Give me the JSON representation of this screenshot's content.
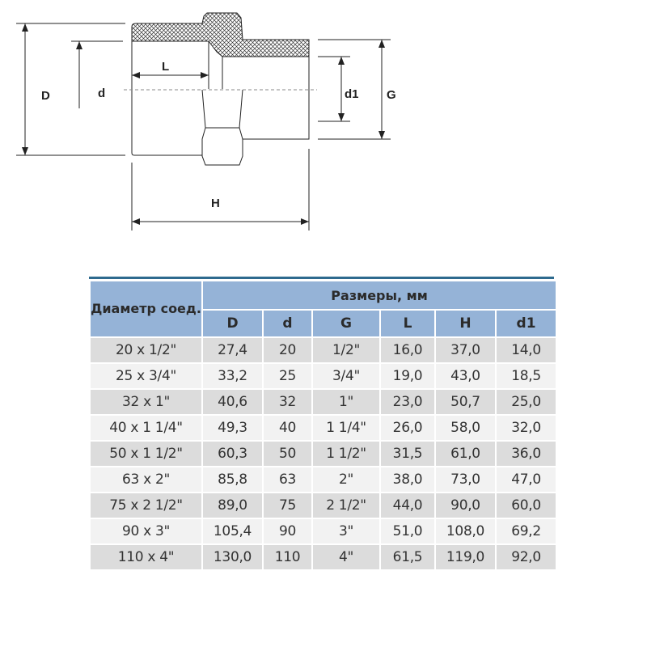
{
  "diagram": {
    "labels": {
      "D": "D",
      "d": "d",
      "L": "L",
      "d1": "d1",
      "G": "G",
      "H": "H"
    }
  },
  "table": {
    "header_diameter": "Диаметр соед.",
    "header_dimensions": "Размеры, мм",
    "columns": [
      "D",
      "d",
      "G",
      "L",
      "H",
      "d1"
    ],
    "rows": [
      [
        "20 x 1/2\"",
        "27,4",
        "20",
        "1/2\"",
        "16,0",
        "37,0",
        "14,0"
      ],
      [
        "25 x 3/4\"",
        "33,2",
        "25",
        "3/4\"",
        "19,0",
        "43,0",
        "18,5"
      ],
      [
        "32 x 1\"",
        "40,6",
        "32",
        "1\"",
        "23,0",
        "50,7",
        "25,0"
      ],
      [
        "40 x 1 1/4\"",
        "49,3",
        "40",
        "1 1/4\"",
        "26,0",
        "58,0",
        "32,0"
      ],
      [
        "50 x 1 1/2\"",
        "60,3",
        "50",
        "1 1/2\"",
        "31,5",
        "61,0",
        "36,0"
      ],
      [
        "63 x 2\"",
        "85,8",
        "63",
        "2\"",
        "38,0",
        "73,0",
        "47,0"
      ],
      [
        "75 x 2 1/2\"",
        "89,0",
        "75",
        "2 1/2\"",
        "44,0",
        "90,0",
        "60,0"
      ],
      [
        "90 x 3\"",
        "105,4",
        "90",
        "3\"",
        "51,0",
        "108,0",
        "69,2"
      ],
      [
        "110 x 4\"",
        "130,0",
        "110",
        "4\"",
        "61,5",
        "119,0",
        "92,0"
      ]
    ],
    "colors": {
      "header": "#95b3d7",
      "top_rule": "#2e6a8e",
      "row_odd": "#dcdcdc",
      "row_even": "#f2f2f2"
    }
  }
}
